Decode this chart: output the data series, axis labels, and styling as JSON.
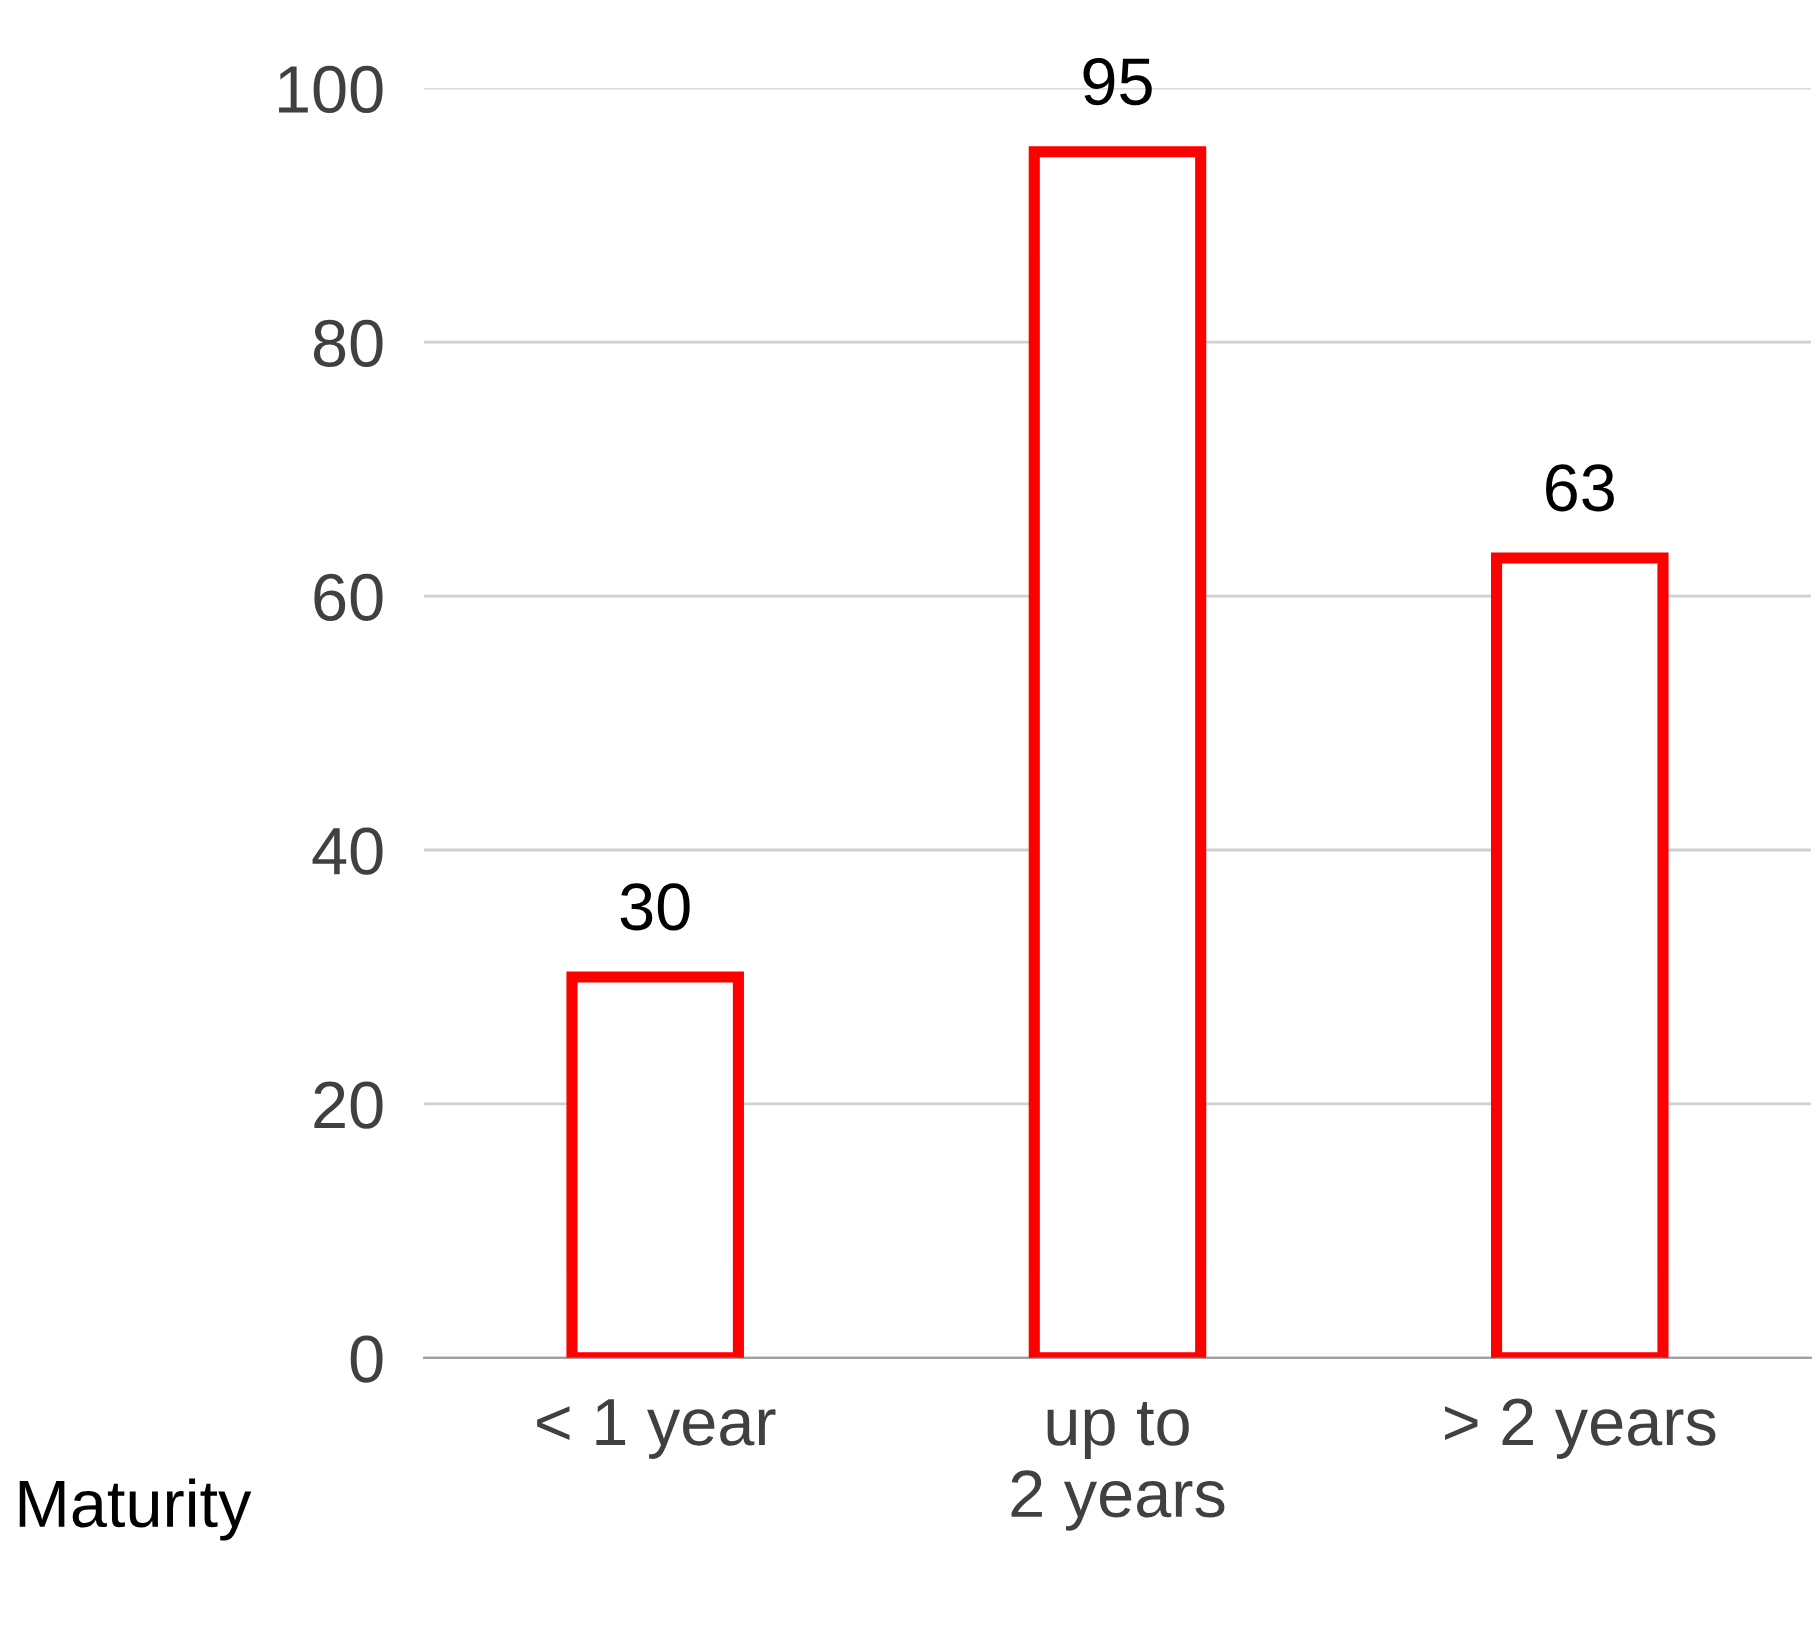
{
  "chart_data": {
    "type": "bar",
    "xlabel": "Maturity",
    "categories": [
      "< 1 year",
      "up to\n2 years",
      "> 2 years"
    ],
    "values": [
      30,
      95,
      63
    ],
    "color": "#ff0000",
    "ylim": [
      0,
      100
    ],
    "yticks": [
      0,
      20,
      40,
      60,
      80,
      100
    ],
    "grid": "y",
    "data_labels": true
  }
}
